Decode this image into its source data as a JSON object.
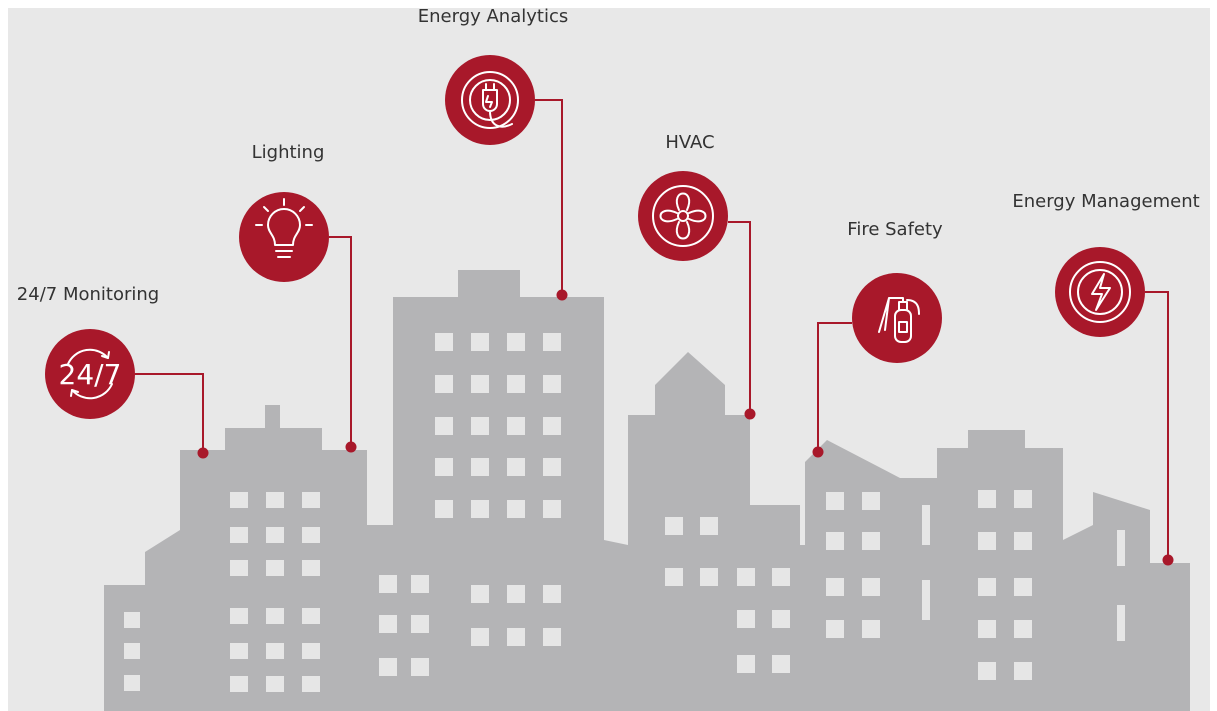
{
  "nodes": [
    {
      "label": "24/7 Monitoring",
      "icon_text": "24/7"
    },
    {
      "label": "Lighting"
    },
    {
      "label": "Energy Analytics"
    },
    {
      "label": "HVAC"
    },
    {
      "label": "Fire Safety"
    },
    {
      "label": "Energy Management"
    }
  ]
}
